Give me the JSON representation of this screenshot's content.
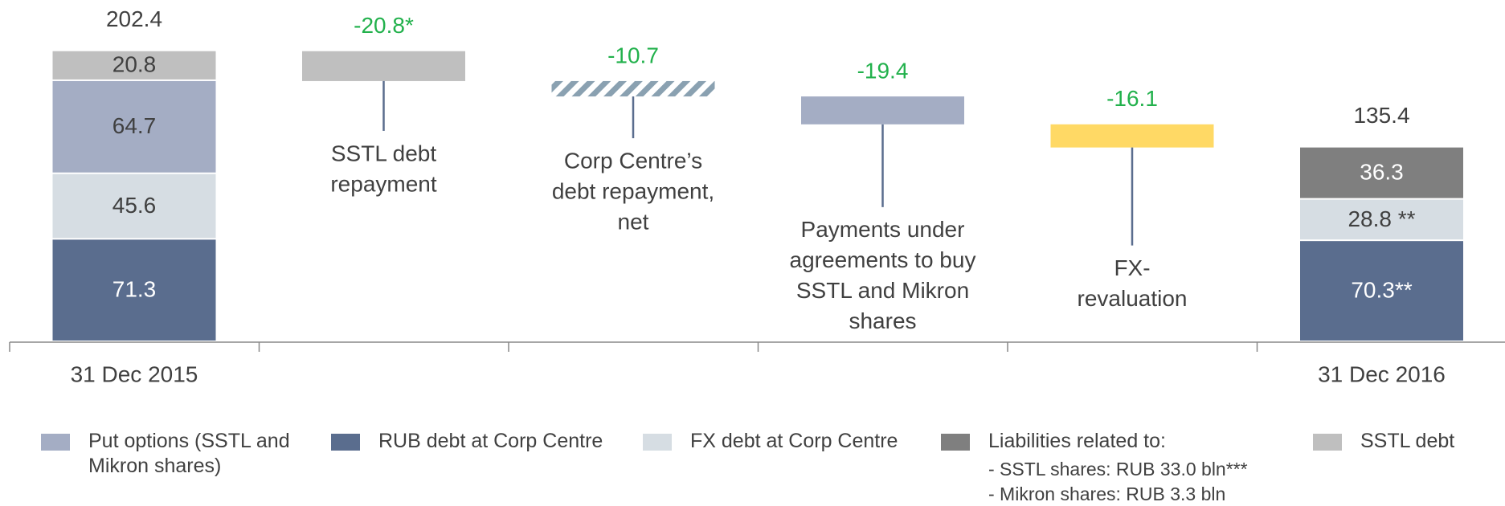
{
  "chart_data": {
    "type": "waterfall",
    "categories": [
      "31 Dec 2015",
      null,
      null,
      null,
      null,
      "31 Dec 2016"
    ],
    "totals": [
      202.4,
      null,
      null,
      null,
      null,
      135.4
    ],
    "series": [
      {
        "name": "RUB debt at Corp Centre",
        "color": "#5a6d8e",
        "values": [
          71.3,
          null,
          null,
          null,
          null,
          70.3
        ],
        "value_labels": [
          "71.3",
          null,
          null,
          null,
          null,
          "70.3**"
        ]
      },
      {
        "name": "FX debt at Corp Centre",
        "color": "#d6dde3",
        "values": [
          45.6,
          null,
          null,
          null,
          null,
          28.8
        ],
        "value_labels": [
          "45.6",
          null,
          null,
          null,
          null,
          "28.8 **"
        ]
      },
      {
        "name": "Put options (SSTL and Mikron shares)",
        "color": "#a4adc4",
        "values": [
          64.7,
          null,
          null,
          null,
          null,
          null
        ]
      },
      {
        "name": "Liabilities related to:",
        "color": "#7f7f7f",
        "values": [
          null,
          null,
          null,
          null,
          null,
          36.3
        ],
        "notes": [
          "-  SSTL shares: RUB 33.0 bln***",
          "-  Mikron shares: RUB 3.3 bln"
        ]
      },
      {
        "name": "SSTL debt",
        "color": "#bfbfbf",
        "values": [
          20.8,
          null,
          null,
          null,
          null,
          null
        ]
      }
    ],
    "steps": [
      {
        "label": [
          "SSTL debt",
          "repayment"
        ],
        "value": -20.8,
        "value_label": "-20.8*",
        "color": "#bfbfbf"
      },
      {
        "label": [
          "Corp Centre’s",
          "debt repayment,",
          "net"
        ],
        "value": -10.7,
        "color": "#8aa1b1",
        "pattern": "hatch"
      },
      {
        "label": [
          "Payments under",
          "agreements to buy",
          "SSTL and Mikron",
          "shares"
        ],
        "value": -19.4,
        "color": "#a4adc4"
      },
      {
        "label": [
          "FX-",
          "revaluation"
        ],
        "value": -16.1,
        "color": "#ffd965"
      }
    ],
    "step_label_color": "#22b14c"
  }
}
